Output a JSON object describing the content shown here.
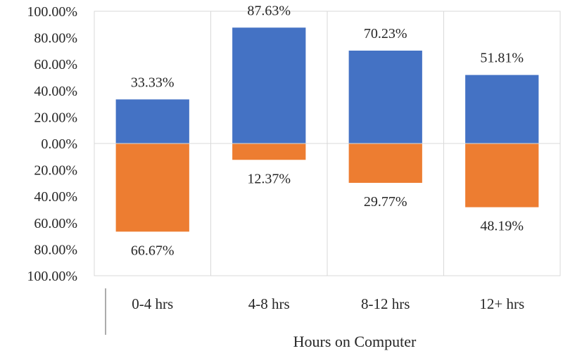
{
  "chart_data": {
    "type": "bar",
    "categories": [
      "0-4 hrs",
      "4-8 hrs",
      "8-12 hrs",
      "12+ hrs"
    ],
    "series": [
      {
        "values": [
          33.33,
          87.63,
          70.23,
          51.81
        ],
        "color": "#4472c4"
      },
      {
        "values": [
          -66.67,
          -12.37,
          -29.77,
          -48.19
        ],
        "color": "#ed7d31"
      }
    ],
    "data_labels": [
      [
        "33.33%",
        "87.63%",
        "70.23%",
        "51.81%"
      ],
      [
        "66.67%",
        "12.37%",
        "29.77%",
        "48.19%"
      ]
    ],
    "ytick_values": [
      100,
      80,
      60,
      40,
      20,
      0,
      -20,
      -40,
      -60,
      -80,
      -100
    ],
    "ytick_labels": [
      "100.00%",
      "80.00%",
      "60.00%",
      "40.00%",
      "20.00%",
      "0.00%",
      "20.00%",
      "40.00%",
      "60.00%",
      "80.00%",
      "100.00%"
    ],
    "ylim": [
      -100,
      100
    ],
    "xlabel": "Hours on Computer",
    "ylabel": "",
    "title": "",
    "grid": "vertical category separators",
    "legend": "none"
  }
}
